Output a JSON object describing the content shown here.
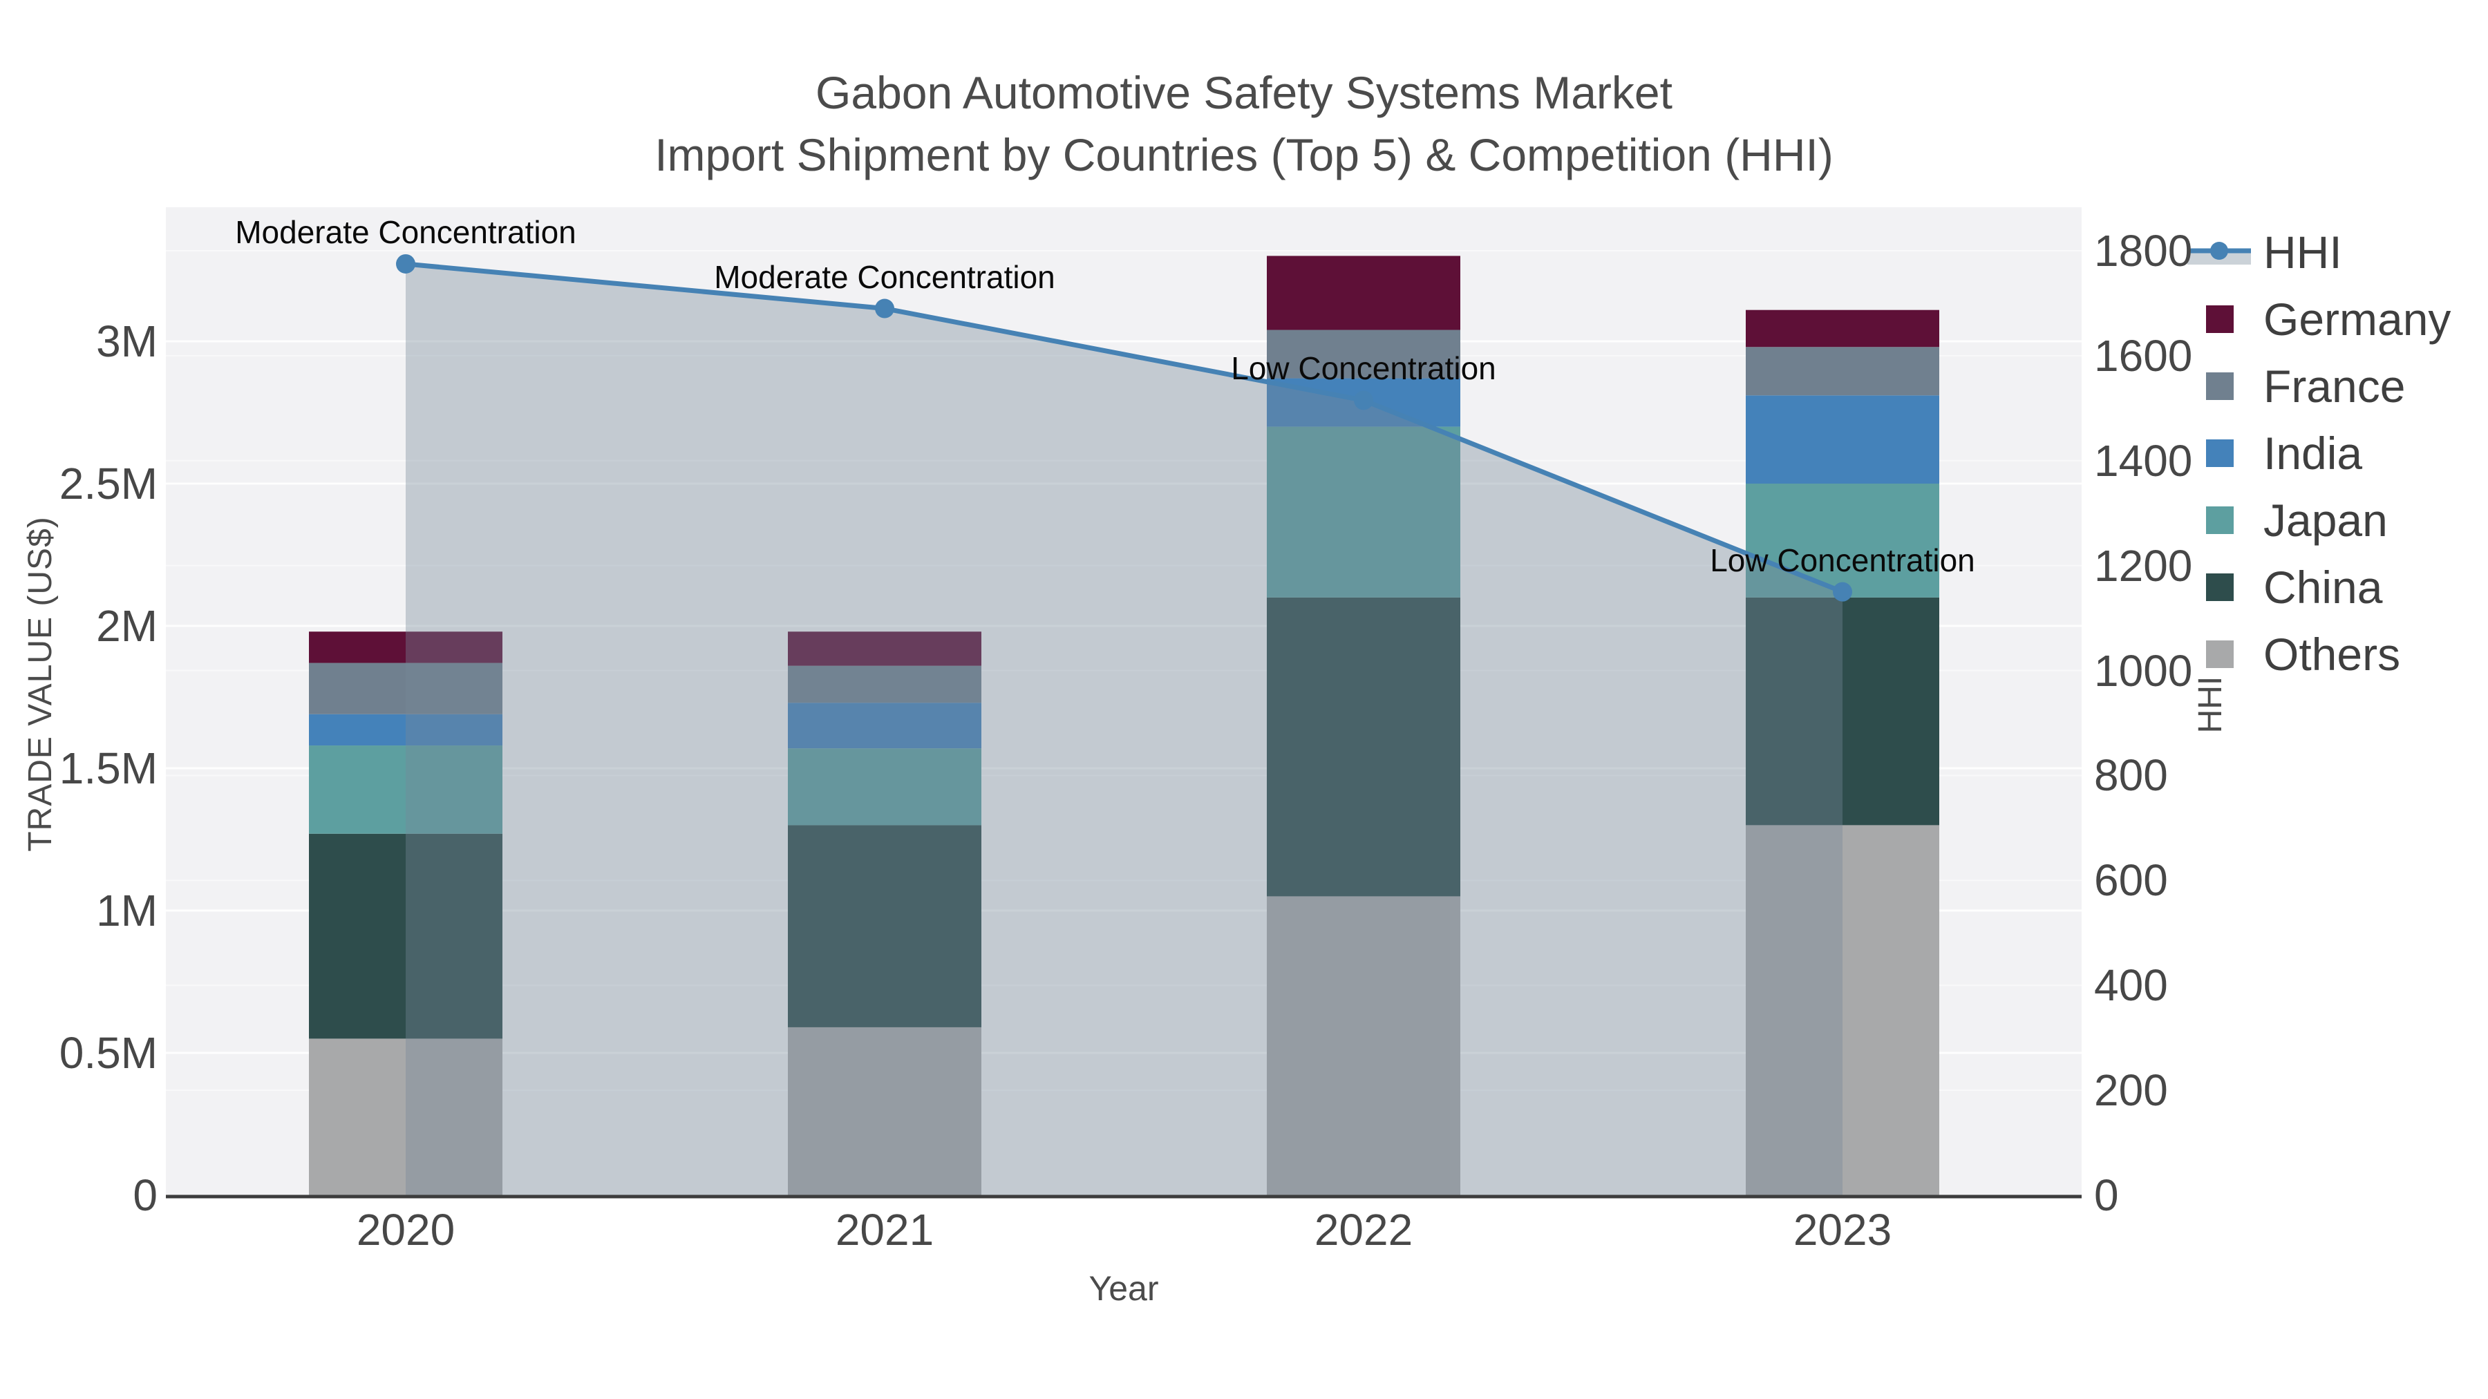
{
  "title": {
    "line1": "Gabon Automotive Safety Systems Market",
    "line2": "Import Shipment by Countries (Top 5) & Competition (HHI)"
  },
  "axes": {
    "x": {
      "title": "Year",
      "ticks": [
        "2020",
        "2021",
        "2022",
        "2023"
      ]
    },
    "y_left": {
      "title": "TRADE VALUE (US$)",
      "ticks": [
        "0",
        "0.5M",
        "1M",
        "1.5M",
        "2M",
        "2.5M",
        "3M"
      ]
    },
    "y_right": {
      "title": "HHI",
      "ticks": [
        "0",
        "200",
        "400",
        "600",
        "800",
        "1000",
        "1200",
        "1400",
        "1600",
        "1800"
      ]
    }
  },
  "legend": {
    "items": [
      {
        "label": "HHI"
      },
      {
        "label": "Germany"
      },
      {
        "label": "France"
      },
      {
        "label": "India"
      },
      {
        "label": "Japan"
      },
      {
        "label": "China"
      },
      {
        "label": "Others"
      }
    ]
  },
  "colors": {
    "hhi_line": "#4682b4",
    "hhi_area_fill": "rgba(119,136,153,0.38)",
    "germany": "#5e1037",
    "france": "#70808f",
    "india": "#4482ba",
    "japan": "#5d9fa0",
    "china": "#2e4d4c",
    "others": "#a8a9aa",
    "plot_background": "#f2f2f4",
    "axis_line": "#3d3d3d"
  },
  "chart_data": {
    "type": "bar",
    "subtype": "stacked-bars-with-line-area",
    "title": "Gabon Automotive Safety Systems Market",
    "subtitle": "Import Shipment by Countries (Top 5) & Competition (HHI)",
    "categories": [
      2020,
      2021,
      2022,
      2023
    ],
    "xlabel": "Year",
    "bar_value_unit": "US$ millions",
    "series": [
      {
        "name": "Others",
        "color": "#a8a9aa",
        "values": [
          0.55,
          0.59,
          1.05,
          1.3
        ]
      },
      {
        "name": "China",
        "color": "#2e4d4c",
        "values": [
          0.72,
          0.71,
          1.05,
          0.8
        ]
      },
      {
        "name": "Japan",
        "color": "#5d9fa0",
        "values": [
          0.31,
          0.27,
          0.6,
          0.4
        ]
      },
      {
        "name": "India",
        "color": "#4482ba",
        "values": [
          0.11,
          0.16,
          0.17,
          0.31
        ]
      },
      {
        "name": "France",
        "color": "#70808f",
        "values": [
          0.18,
          0.13,
          0.17,
          0.17
        ]
      },
      {
        "name": "Germany",
        "color": "#5e1037",
        "values": [
          0.11,
          0.12,
          0.26,
          0.13
        ]
      }
    ],
    "stack_order": "bottom-to-top",
    "line": {
      "name": "HHI",
      "axis": "right",
      "color": "#4682b4",
      "area_fill": "rgba(119,136,153,0.38)",
      "values": [
        1775,
        1690,
        1515,
        1150
      ]
    },
    "y_left": {
      "label": "TRADE VALUE (US$)",
      "tick_values": [
        0,
        0.5,
        1,
        1.5,
        2,
        2.5,
        3
      ],
      "tick_labels": [
        "0",
        "0.5M",
        "1M",
        "1.5M",
        "2M",
        "2.5M",
        "3M"
      ],
      "range": [
        0,
        3.47
      ]
    },
    "y_right": {
      "label": "HHI",
      "tick_values": [
        0,
        200,
        400,
        600,
        800,
        1000,
        1200,
        1400,
        1600,
        1800
      ],
      "tick_labels": [
        "0",
        "200",
        "400",
        "600",
        "800",
        "1000",
        "1200",
        "1400",
        "1600",
        "1800"
      ],
      "range": [
        0,
        1883
      ]
    },
    "annotations": [
      {
        "x": 2020,
        "y": 1775,
        "text": "Moderate Concentration"
      },
      {
        "x": 2021,
        "y": 1690,
        "text": "Moderate Concentration"
      },
      {
        "x": 2022,
        "y": 1515,
        "text": "Low Concentration"
      },
      {
        "x": 2023,
        "y": 1150,
        "text": "Low Concentration"
      }
    ],
    "grid": true,
    "legend_position": "right-top"
  }
}
